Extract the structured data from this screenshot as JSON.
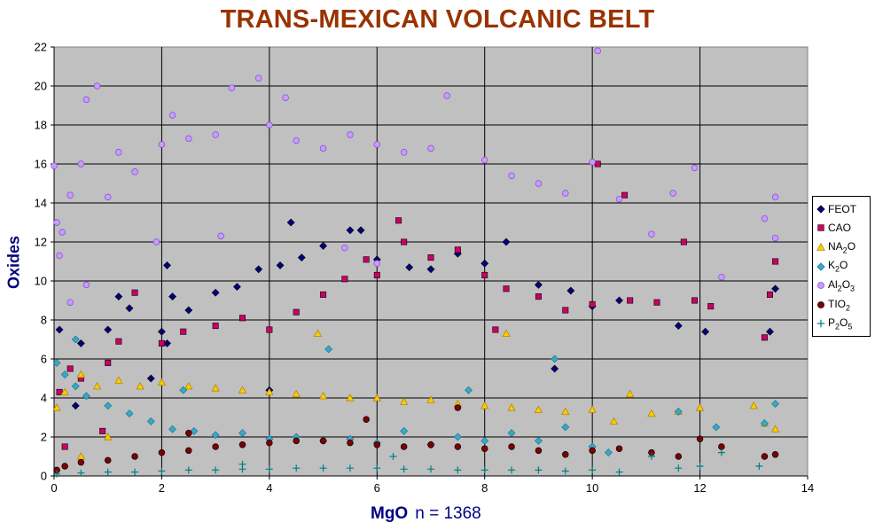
{
  "chart_data": {
    "type": "scatter",
    "title": "TRANS-MEXICAN VOLCANIC BELT",
    "xlabel": "MgO",
    "xlabel_note": "n = 1368",
    "ylabel": "Oxides",
    "xlim": [
      0,
      14
    ],
    "ylim": [
      0,
      22
    ],
    "x_ticks": [
      "0",
      "2",
      "4",
      "6",
      "8",
      "10",
      "12",
      "14"
    ],
    "y_ticks": [
      "0",
      "2",
      "4",
      "6",
      "8",
      "10",
      "12",
      "14",
      "16",
      "18",
      "20",
      "22"
    ],
    "grid": true,
    "plot_background": "#C0C0C0",
    "legend_position": "right",
    "series": [
      {
        "name": "FEOT",
        "label_html": "FEOT",
        "marker": "diamond",
        "color": "#000080",
        "points": [
          [
            0.1,
            7.5
          ],
          [
            0.5,
            6.8
          ],
          [
            1,
            7.5
          ],
          [
            1.4,
            8.6
          ],
          [
            2,
            7.4
          ],
          [
            2.2,
            9.2
          ],
          [
            2.5,
            8.5
          ],
          [
            3,
            9.4
          ],
          [
            3.4,
            9.7
          ],
          [
            3.8,
            10.6
          ],
          [
            4.2,
            10.8
          ],
          [
            4.6,
            11.2
          ],
          [
            5,
            11.8
          ],
          [
            5.5,
            12.6
          ],
          [
            6,
            11.1
          ],
          [
            6.6,
            10.7
          ],
          [
            7,
            10.6
          ],
          [
            7.5,
            11.4
          ],
          [
            8,
            10.9
          ],
          [
            8.4,
            12.0
          ],
          [
            9,
            9.8
          ],
          [
            9.6,
            9.5
          ],
          [
            10,
            8.7
          ],
          [
            10.5,
            9.0
          ],
          [
            11.6,
            7.7
          ],
          [
            12.1,
            7.4
          ],
          [
            13.3,
            7.4
          ],
          [
            13.4,
            9.6
          ],
          [
            2.1,
            10.8
          ],
          [
            1.2,
            9.2
          ],
          [
            2.1,
            6.8
          ],
          [
            5.7,
            12.6
          ],
          [
            4.4,
            13.0
          ],
          [
            0.4,
            3.6
          ],
          [
            1.8,
            5.0
          ],
          [
            9.3,
            5.5
          ],
          [
            4.0,
            4.4
          ]
        ]
      },
      {
        "name": "CAO",
        "label_html": "CAO",
        "marker": "square",
        "color": "#CC0066",
        "points": [
          [
            0.1,
            4.3
          ],
          [
            0.3,
            5.5
          ],
          [
            0.5,
            5.0
          ],
          [
            1,
            5.8
          ],
          [
            1.2,
            6.9
          ],
          [
            1.5,
            9.4
          ],
          [
            2,
            6.8
          ],
          [
            2.4,
            7.4
          ],
          [
            3,
            7.7
          ],
          [
            3.5,
            8.1
          ],
          [
            4,
            7.5
          ],
          [
            4.5,
            8.4
          ],
          [
            5,
            9.3
          ],
          [
            5.4,
            10.1
          ],
          [
            5.8,
            11.1
          ],
          [
            6,
            10.3
          ],
          [
            6.5,
            12.0
          ],
          [
            7,
            11.2
          ],
          [
            7.5,
            11.6
          ],
          [
            8,
            10.3
          ],
          [
            8.4,
            9.6
          ],
          [
            9,
            9.2
          ],
          [
            9.5,
            8.5
          ],
          [
            10,
            8.8
          ],
          [
            10.1,
            16.0
          ],
          [
            10.6,
            14.4
          ],
          [
            10.7,
            9.0
          ],
          [
            11.2,
            8.9
          ],
          [
            11.7,
            12.0
          ],
          [
            11.9,
            9.0
          ],
          [
            12.2,
            8.7
          ],
          [
            13.2,
            7.1
          ],
          [
            13.3,
            9.3
          ],
          [
            13.4,
            11.0
          ],
          [
            6.4,
            13.1
          ],
          [
            8.2,
            7.5
          ],
          [
            0.2,
            1.5
          ],
          [
            0.9,
            2.3
          ]
        ]
      },
      {
        "name": "NA2O",
        "label_html": "NA<sub>2</sub>O",
        "marker": "triangle",
        "color": "#FFCC00",
        "stroke": "#B08800",
        "points": [
          [
            0.05,
            3.5
          ],
          [
            0.2,
            4.3
          ],
          [
            0.5,
            5.2
          ],
          [
            0.8,
            4.6
          ],
          [
            1.2,
            4.9
          ],
          [
            1.6,
            4.6
          ],
          [
            2,
            4.8
          ],
          [
            2.5,
            4.6
          ],
          [
            3,
            4.5
          ],
          [
            3.5,
            4.4
          ],
          [
            4,
            4.3
          ],
          [
            4.5,
            4.2
          ],
          [
            5,
            4.1
          ],
          [
            5.5,
            4.0
          ],
          [
            6,
            4.0
          ],
          [
            6.5,
            3.8
          ],
          [
            7,
            3.9
          ],
          [
            7.5,
            3.7
          ],
          [
            8,
            3.6
          ],
          [
            8.5,
            3.5
          ],
          [
            9,
            3.4
          ],
          [
            9.5,
            3.3
          ],
          [
            10,
            3.4
          ],
          [
            10.4,
            2.8
          ],
          [
            10.7,
            4.2
          ],
          [
            11.1,
            3.2
          ],
          [
            11.6,
            3.3
          ],
          [
            12,
            3.5
          ],
          [
            13,
            3.6
          ],
          [
            13.2,
            2.7
          ],
          [
            13.4,
            2.4
          ],
          [
            8.4,
            7.3
          ],
          [
            4.9,
            7.3
          ],
          [
            0.5,
            1.0
          ],
          [
            1.0,
            2.0
          ]
        ]
      },
      {
        "name": "K2O",
        "label_html": "K<sub>2</sub>O",
        "marker": "diamond",
        "color": "#33AACC",
        "stroke": "#1A6A80",
        "points": [
          [
            0.05,
            5.8
          ],
          [
            0.2,
            5.2
          ],
          [
            0.4,
            4.6
          ],
          [
            0.6,
            4.1
          ],
          [
            1,
            3.6
          ],
          [
            1.4,
            3.2
          ],
          [
            1.8,
            2.8
          ],
          [
            2.2,
            2.4
          ],
          [
            2.6,
            2.3
          ],
          [
            3,
            2.1
          ],
          [
            3.5,
            2.2
          ],
          [
            4,
            1.9
          ],
          [
            4.5,
            2.0
          ],
          [
            5,
            1.8
          ],
          [
            5.5,
            1.9
          ],
          [
            6,
            1.7
          ],
          [
            6.5,
            2.3
          ],
          [
            7,
            1.6
          ],
          [
            7.5,
            2.0
          ],
          [
            8,
            1.8
          ],
          [
            8.5,
            2.2
          ],
          [
            9,
            1.8
          ],
          [
            9.5,
            2.5
          ],
          [
            10,
            1.5
          ],
          [
            10.3,
            1.2
          ],
          [
            11.6,
            3.3
          ],
          [
            12.3,
            2.5
          ],
          [
            13.2,
            2.7
          ],
          [
            13.4,
            3.7
          ],
          [
            0.4,
            7.0
          ],
          [
            2.4,
            4.4
          ],
          [
            7.7,
            4.4
          ],
          [
            9.3,
            6.0
          ],
          [
            5.1,
            6.5
          ]
        ]
      },
      {
        "name": "AL2O3",
        "label_html": "Al<sub>2</sub>O<sub>3</sub>",
        "marker": "circle",
        "color": "#CC99FF",
        "stroke": "#7F4FC0",
        "points": [
          [
            0,
            15.9
          ],
          [
            0.05,
            13.0
          ],
          [
            0.1,
            11.3
          ],
          [
            0.15,
            12.5
          ],
          [
            0.3,
            14.4
          ],
          [
            0.5,
            16.0
          ],
          [
            0.6,
            19.3
          ],
          [
            0.8,
            20.0
          ],
          [
            1,
            14.3
          ],
          [
            1.2,
            16.6
          ],
          [
            1.5,
            15.6
          ],
          [
            2,
            17.0
          ],
          [
            2.2,
            18.5
          ],
          [
            2.5,
            17.3
          ],
          [
            3,
            17.5
          ],
          [
            3.3,
            19.9
          ],
          [
            3.8,
            20.4
          ],
          [
            4,
            18.0
          ],
          [
            4.3,
            19.4
          ],
          [
            4.5,
            17.2
          ],
          [
            5,
            16.8
          ],
          [
            5.5,
            17.5
          ],
          [
            6,
            17.0
          ],
          [
            6.5,
            16.6
          ],
          [
            7,
            16.8
          ],
          [
            7.3,
            19.5
          ],
          [
            8,
            16.2
          ],
          [
            8.5,
            15.4
          ],
          [
            9,
            15.0
          ],
          [
            9.5,
            14.5
          ],
          [
            10,
            16.1
          ],
          [
            10.1,
            21.8
          ],
          [
            10.5,
            14.2
          ],
          [
            11.1,
            12.4
          ],
          [
            11.5,
            14.5
          ],
          [
            11.9,
            15.8
          ],
          [
            12.4,
            10.2
          ],
          [
            13.2,
            13.2
          ],
          [
            13.4,
            14.3
          ],
          [
            13.4,
            12.2
          ],
          [
            0.3,
            8.9
          ],
          [
            0.6,
            9.8
          ],
          [
            1.9,
            12.0
          ],
          [
            5.4,
            11.7
          ],
          [
            6,
            10.9
          ],
          [
            3.1,
            12.3
          ]
        ]
      },
      {
        "name": "TIO2",
        "label_html": "TIO<sub>2</sub>",
        "marker": "circle",
        "color": "#800000",
        "points": [
          [
            0.05,
            0.3
          ],
          [
            0.2,
            0.5
          ],
          [
            0.5,
            0.7
          ],
          [
            1,
            0.8
          ],
          [
            1.5,
            1.0
          ],
          [
            2,
            1.2
          ],
          [
            2.5,
            1.3
          ],
          [
            3,
            1.5
          ],
          [
            3.5,
            1.6
          ],
          [
            4,
            1.7
          ],
          [
            4.5,
            1.8
          ],
          [
            5,
            1.8
          ],
          [
            5.5,
            1.7
          ],
          [
            6,
            1.6
          ],
          [
            6.5,
            1.5
          ],
          [
            7,
            1.6
          ],
          [
            7.5,
            1.5
          ],
          [
            8,
            1.4
          ],
          [
            8.5,
            1.5
          ],
          [
            9,
            1.3
          ],
          [
            9.5,
            1.1
          ],
          [
            10,
            1.3
          ],
          [
            10.5,
            1.4
          ],
          [
            11.1,
            1.2
          ],
          [
            11.6,
            1.0
          ],
          [
            12,
            1.9
          ],
          [
            12.4,
            1.5
          ],
          [
            13.2,
            1.0
          ],
          [
            13.4,
            1.1
          ],
          [
            7.5,
            3.5
          ],
          [
            5.8,
            2.9
          ],
          [
            2.5,
            2.2
          ]
        ]
      },
      {
        "name": "P2O5",
        "label_html": "P<sub>2</sub>O<sub>5</sub>",
        "marker": "plus",
        "color": "#008080",
        "points": [
          [
            0.05,
            0.1
          ],
          [
            0.5,
            0.15
          ],
          [
            1,
            0.2
          ],
          [
            1.5,
            0.2
          ],
          [
            2,
            0.25
          ],
          [
            2.5,
            0.3
          ],
          [
            3,
            0.3
          ],
          [
            3.5,
            0.35
          ],
          [
            4,
            0.35
          ],
          [
            4.5,
            0.4
          ],
          [
            5,
            0.4
          ],
          [
            5.5,
            0.4
          ],
          [
            6,
            0.4
          ],
          [
            6.5,
            0.35
          ],
          [
            7,
            0.35
          ],
          [
            7.5,
            0.3
          ],
          [
            8,
            0.3
          ],
          [
            8.5,
            0.3
          ],
          [
            9,
            0.3
          ],
          [
            9.5,
            0.25
          ],
          [
            10,
            0.3
          ],
          [
            10.5,
            0.2
          ],
          [
            11.1,
            1.0
          ],
          [
            11.6,
            0.4
          ],
          [
            12,
            0.5
          ],
          [
            12.4,
            1.2
          ],
          [
            13.1,
            0.5
          ],
          [
            6.3,
            1.0
          ],
          [
            3.5,
            0.6
          ]
        ]
      }
    ]
  }
}
